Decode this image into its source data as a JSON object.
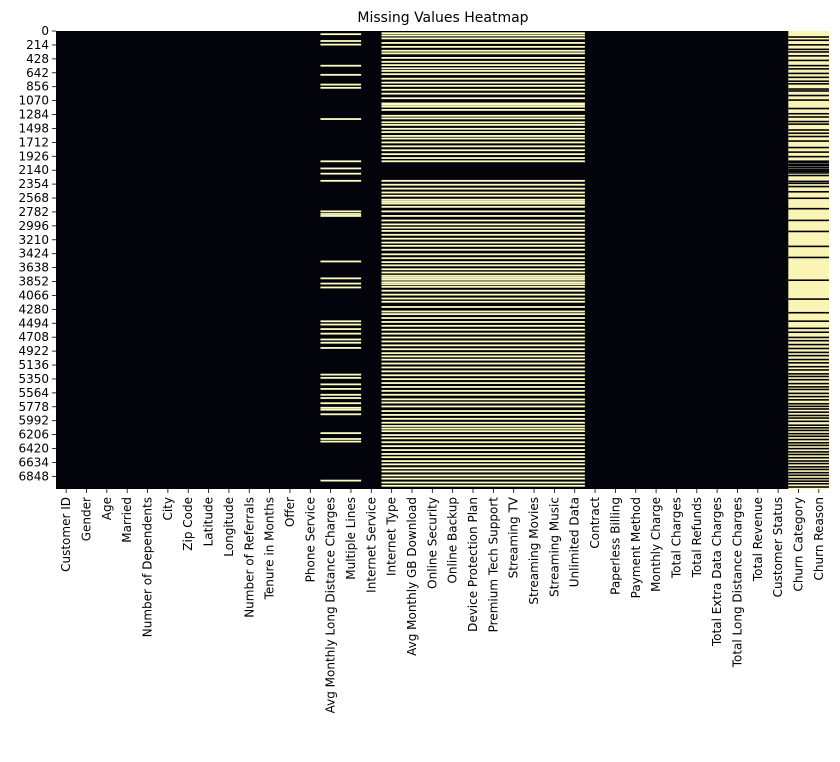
{
  "chart_data": {
    "type": "heatmap",
    "title": "Missing Values Heatmap",
    "xlabel": "",
    "ylabel": "",
    "colors": {
      "present": "#03030b",
      "missing": "#fcfdbf",
      "missing_dense": "#fbf5b5"
    },
    "n_rows": 7043,
    "yticks": [
      0,
      214,
      428,
      642,
      856,
      1070,
      1284,
      1498,
      1712,
      1926,
      2140,
      2354,
      2568,
      2782,
      2996,
      3210,
      3424,
      3638,
      3852,
      4066,
      4280,
      4494,
      4708,
      4922,
      5136,
      5350,
      5564,
      5778,
      5992,
      6206,
      6420,
      6634,
      6848
    ],
    "columns": [
      "Customer ID",
      "Gender",
      "Age",
      "Married",
      "Number of Dependents",
      "City",
      "Zip Code",
      "Latitude",
      "Longitude",
      "Number of Referrals",
      "Tenure in Months",
      "Offer",
      "Phone Service",
      "Avg Monthly Long Distance Charges",
      "Multiple Lines",
      "Internet Service",
      "Internet Type",
      "Avg Monthly GB Download",
      "Online Security",
      "Online Backup",
      "Device Protection Plan",
      "Premium Tech Support",
      "Streaming TV",
      "Streaming Movies",
      "Streaming Music",
      "Unlimited Data",
      "Contract",
      "Paperless Billing",
      "Payment Method",
      "Monthly Charge",
      "Total Charges",
      "Total Refunds",
      "Total Extra Data Charges",
      "Total Long Distance Charges",
      "Total Revenue",
      "Customer Status",
      "Churn Category",
      "Churn Reason"
    ],
    "missing_groups": [
      {
        "columns": [
          "Avg Monthly Long Distance Charges",
          "Multiple Lines"
        ],
        "density": "sparse",
        "missing_rows": [
          35,
          140,
          195,
          520,
          660,
          810,
          860,
          1340,
          1990,
          2100,
          2180,
          2290,
          2760,
          2800,
          2830,
          3530,
          3790,
          3870,
          3930,
          4450,
          4500,
          4570,
          4640,
          4730,
          4780,
          4860,
          5270,
          5320,
          5420,
          5490,
          5580,
          5630,
          5710,
          5780,
          5810,
          5880,
          6170,
          6260,
          6300,
          6900
        ]
      },
      {
        "columns": [
          "Internet Type",
          "Avg Monthly GB Download",
          "Online Security",
          "Online Backup",
          "Device Protection Plan",
          "Premium Tech Support",
          "Streaming TV",
          "Streaming Movies",
          "Streaming Music",
          "Unlimited Data"
        ],
        "density": "moderate",
        "missing_rows": [
          20,
          55,
          100,
          170,
          230,
          290,
          330,
          400,
          460,
          510,
          560,
          600,
          650,
          720,
          780,
          830,
          890,
          950,
          1020,
          1100,
          1120,
          1150,
          1200,
          1290,
          1330,
          1390,
          1430,
          1490,
          1540,
          1600,
          1640,
          1700,
          1760,
          1820,
          1880,
          1940,
          1990,
          2290,
          2350,
          2410,
          2470,
          2520,
          2580,
          2610,
          2640,
          2690,
          2760,
          2830,
          2900,
          2960,
          3010,
          3060,
          3120,
          3180,
          3240,
          3290,
          3350,
          3420,
          3480,
          3540,
          3590,
          3650,
          3700,
          3750,
          3780,
          3810,
          3850,
          3880,
          3920,
          3980,
          4040,
          4100,
          4150,
          4230,
          4300,
          4340,
          4400,
          4460,
          4520,
          4580,
          4640,
          4700,
          4760,
          4820,
          4880,
          4940,
          4990,
          5040,
          5100,
          5160,
          5220,
          5280,
          5340,
          5400,
          5460,
          5520,
          5580,
          5650,
          5700,
          5760,
          5830,
          5890,
          5950,
          6010,
          6060,
          6100,
          6140,
          6200,
          6250,
          6310,
          6370,
          6430,
          6490,
          6540,
          6600,
          6650,
          6710,
          6760,
          6820,
          6870,
          6930,
          6980
        ]
      },
      {
        "columns": [
          "Churn Category",
          "Churn Reason"
        ],
        "density": "dense",
        "present_rows": [
          80,
          130,
          200,
          270,
          310,
          370,
          440,
          520,
          570,
          640,
          700,
          760,
          800,
          880,
          910,
          980,
          1050,
          1180,
          1260,
          1310,
          1380,
          1420,
          1510,
          1560,
          1610,
          1680,
          1780,
          1850,
          1920,
          1990,
          2010,
          2040,
          2060,
          2090,
          2120,
          2145,
          2170,
          2210,
          2300,
          2330,
          2380,
          2460,
          2560,
          2720,
          2900,
          3070,
          3300,
          3470,
          3820,
          4110,
          4320,
          4450,
          4560,
          4620,
          4700,
          4750,
          4810,
          4870,
          4930,
          4980,
          5040,
          5090,
          5150,
          5200,
          5260,
          5300,
          5350,
          5410,
          5460,
          5500,
          5560,
          5610,
          5660,
          5720,
          5760,
          5800,
          5850,
          5900,
          5940,
          5990,
          6050,
          6090,
          6130,
          6180,
          6220,
          6270,
          6320,
          6360,
          6410,
          6460,
          6500,
          6550,
          6600,
          6640,
          6690,
          6730,
          6780,
          6820,
          6870,
          6910,
          6950,
          7000
        ],
        "missing_rows": []
      }
    ]
  }
}
